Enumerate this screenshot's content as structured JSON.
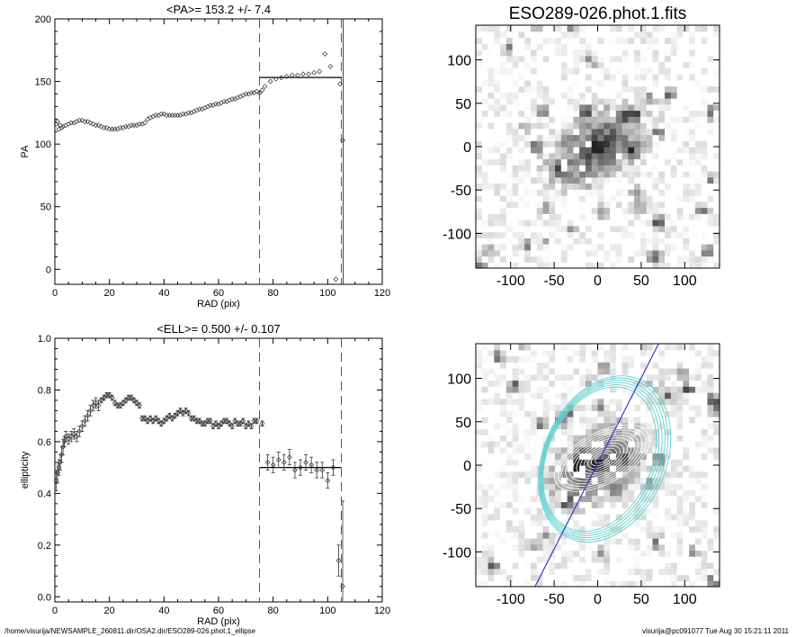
{
  "colors": {
    "axis": "#000000",
    "ellipse": "#5fd0d0",
    "majoraxis": "#2a2ac8",
    "contour": "#ffffff"
  },
  "footer": {
    "left": "/home/visurija/NEWSAMPLE_260811.dir/OSA2.dir/ESO289-026.phot.1_ellipse",
    "right": "visurija@pc091077  Tue Aug 30 15:21:11 2011"
  },
  "chart_data": [
    {
      "type": "scatter",
      "title": "<PA>= 153.2 +/-   7.4",
      "xlabel": "RAD (pix)",
      "ylabel": "PA",
      "xlim": [
        0,
        120
      ],
      "ylim": [
        -12,
        200
      ],
      "xticks": [
        0,
        20,
        40,
        60,
        80,
        100,
        120
      ],
      "yticks": [
        0,
        50,
        100,
        150,
        200
      ],
      "vlines_dashed": [
        75,
        105
      ],
      "vline_solid": 105.7,
      "mean_segment": {
        "x": [
          75,
          105
        ],
        "y": 153.2
      },
      "x": [
        0.5,
        1,
        1.5,
        2,
        2.5,
        3,
        4,
        5,
        6,
        7,
        8,
        9,
        10,
        11,
        12,
        13,
        14,
        15,
        16,
        17,
        18,
        19,
        20,
        21,
        22,
        23,
        24,
        25,
        26,
        27,
        28,
        29,
        30,
        31,
        32,
        33,
        34,
        35,
        36,
        37,
        38,
        39,
        40,
        41,
        42,
        43,
        44,
        45,
        46,
        47,
        48,
        49,
        50,
        51,
        52,
        53,
        54,
        55,
        56,
        57,
        58,
        59,
        60,
        61,
        62,
        63,
        64,
        65,
        66,
        67,
        68,
        69,
        70,
        71,
        72,
        73,
        74,
        75,
        76,
        77,
        79,
        81,
        83,
        85,
        87,
        89,
        91,
        93,
        95,
        97,
        99,
        101,
        103,
        104.5,
        105.5
      ],
      "y": [
        116,
        118,
        112,
        115,
        113,
        114,
        115,
        116,
        117,
        117,
        118,
        119,
        119,
        118,
        118,
        117,
        116,
        115,
        115,
        114,
        113,
        113,
        112,
        112,
        112,
        112,
        113,
        113,
        114,
        114,
        115,
        115,
        115,
        116,
        116,
        117,
        120,
        121,
        122,
        123,
        123,
        124,
        124,
        123,
        123,
        123,
        123,
        123,
        123,
        124,
        124,
        125,
        125,
        126,
        127,
        128,
        128,
        129,
        130,
        131,
        131,
        132,
        132,
        133,
        134,
        134,
        135,
        136,
        136,
        137,
        138,
        139,
        140,
        140,
        141,
        141,
        142,
        141,
        143,
        146,
        150,
        152,
        153,
        154,
        155,
        155,
        156,
        156,
        157,
        158,
        172,
        162,
        -8,
        148,
        103
      ]
    },
    {
      "type": "scatter",
      "title": "<ELL>= 0.500 +/-  0.107",
      "xlabel": "RAD (pix)",
      "ylabel": "ellipticity",
      "xlim": [
        0,
        120
      ],
      "ylim": [
        -0.02,
        1.0
      ],
      "xticks": [
        0,
        20,
        40,
        60,
        80,
        100,
        120
      ],
      "yticks": [
        0.0,
        0.2,
        0.4,
        0.6,
        0.8,
        1.0
      ],
      "vlines_dashed": [
        75,
        105
      ],
      "mean_segment": {
        "x": [
          75,
          105
        ],
        "y": 0.5
      },
      "x": [
        0.5,
        1,
        1.5,
        2,
        2.5,
        3,
        3.5,
        4,
        5,
        6,
        7,
        8,
        9,
        10,
        11,
        12,
        13,
        14,
        15,
        16,
        17,
        18,
        19,
        20,
        21,
        22,
        23,
        24,
        25,
        26,
        27,
        28,
        29,
        30,
        31,
        32,
        33,
        34,
        35,
        36,
        37,
        38,
        39,
        40,
        41,
        42,
        43,
        44,
        45,
        46,
        47,
        48,
        49,
        50,
        51,
        52,
        53,
        54,
        55,
        56,
        57,
        58,
        59,
        60,
        61,
        62,
        63,
        64,
        65,
        66,
        67,
        68,
        69,
        70,
        71,
        72,
        73,
        74,
        76,
        78,
        80,
        82,
        84,
        86,
        88,
        90,
        92,
        94,
        96,
        98,
        100,
        102,
        104,
        105.5
      ],
      "y": [
        0.45,
        0.48,
        0.5,
        0.52,
        0.55,
        0.58,
        0.6,
        0.62,
        0.61,
        0.62,
        0.63,
        0.62,
        0.64,
        0.66,
        0.68,
        0.7,
        0.72,
        0.74,
        0.75,
        0.74,
        0.76,
        0.77,
        0.78,
        0.78,
        0.77,
        0.75,
        0.74,
        0.74,
        0.75,
        0.76,
        0.77,
        0.77,
        0.76,
        0.75,
        0.74,
        0.69,
        0.69,
        0.68,
        0.69,
        0.68,
        0.69,
        0.68,
        0.67,
        0.68,
        0.69,
        0.7,
        0.69,
        0.7,
        0.71,
        0.72,
        0.71,
        0.72,
        0.71,
        0.69,
        0.69,
        0.68,
        0.68,
        0.67,
        0.67,
        0.68,
        0.68,
        0.66,
        0.67,
        0.66,
        0.67,
        0.68,
        0.68,
        0.67,
        0.66,
        0.68,
        0.67,
        0.67,
        0.68,
        0.66,
        0.67,
        0.66,
        0.68,
        0.68,
        0.67,
        0.52,
        0.51,
        0.53,
        0.52,
        0.54,
        0.49,
        0.5,
        0.52,
        0.51,
        0.49,
        0.49,
        0.45,
        0.5,
        0.14,
        0.04
      ],
      "err": [
        0.04,
        0.04,
        0.03,
        0.03,
        0.03,
        0.03,
        0.02,
        0.02,
        0.02,
        0.02,
        0.02,
        0.02,
        0.02,
        0.02,
        0.02,
        0.02,
        0.02,
        0.02,
        0.02,
        0.02,
        0.01,
        0.01,
        0.01,
        0.01,
        0.01,
        0.01,
        0.01,
        0.01,
        0.01,
        0.01,
        0.01,
        0.01,
        0.01,
        0.01,
        0.01,
        0.01,
        0.01,
        0.01,
        0.01,
        0.01,
        0.01,
        0.01,
        0.01,
        0.01,
        0.01,
        0.01,
        0.01,
        0.01,
        0.01,
        0.01,
        0.01,
        0.01,
        0.01,
        0.01,
        0.01,
        0.01,
        0.01,
        0.01,
        0.01,
        0.01,
        0.01,
        0.01,
        0.01,
        0.01,
        0.01,
        0.01,
        0.01,
        0.01,
        0.01,
        0.01,
        0.01,
        0.01,
        0.01,
        0.01,
        0.01,
        0.01,
        0.01,
        0.01,
        0.01,
        0.03,
        0.03,
        0.03,
        0.03,
        0.03,
        0.03,
        0.03,
        0.03,
        0.03,
        0.03,
        0.03,
        0.03,
        0.03,
        0.06,
        0.33
      ]
    },
    {
      "type": "heatmap",
      "title": "ESO289-026.phot.1.fits",
      "xlim": [
        -140,
        140
      ],
      "ylim": [
        -140,
        140
      ],
      "xticks": [
        -100,
        -50,
        0,
        50,
        100
      ],
      "yticks": [
        -100,
        -50,
        0,
        50,
        100
      ]
    },
    {
      "type": "heatmap",
      "title": "",
      "xlim": [
        -140,
        140
      ],
      "ylim": [
        -140,
        140
      ],
      "xticks": [
        -100,
        -50,
        0,
        50,
        100
      ],
      "yticks": [
        -100,
        -50,
        0,
        50,
        100
      ]
    }
  ]
}
